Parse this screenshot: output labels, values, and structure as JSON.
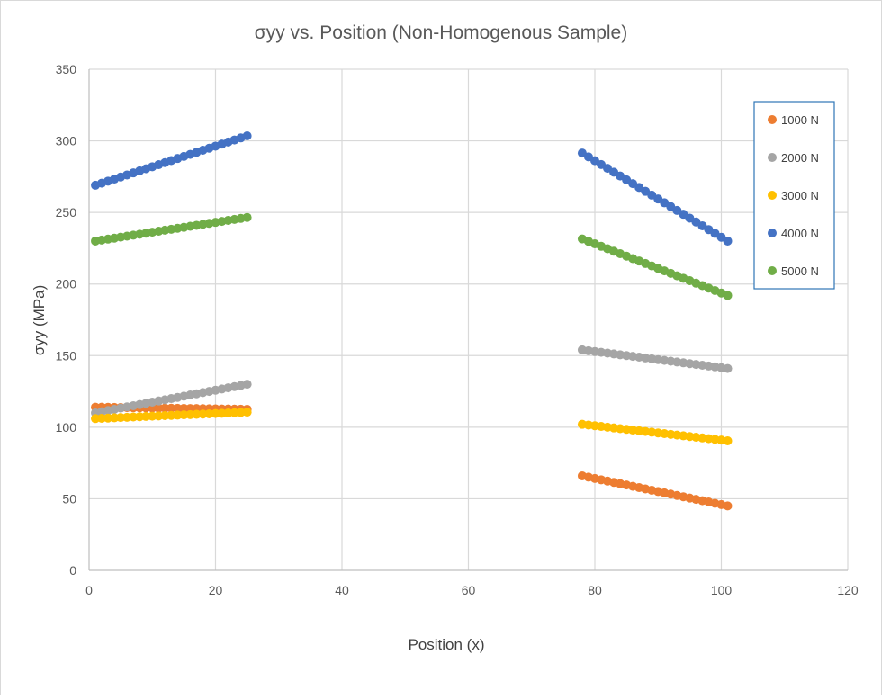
{
  "chart_data": {
    "type": "scatter",
    "title": "σyy vs. Position (Non-Homogenous Sample)",
    "xlabel": "Position (x)",
    "ylabel": "σyy (MPa)",
    "xlim": [
      0,
      120
    ],
    "ylim": [
      0,
      350
    ],
    "xticks": [
      0,
      20,
      40,
      60,
      80,
      100,
      120
    ],
    "yticks": [
      0,
      50,
      100,
      150,
      200,
      250,
      300,
      350
    ],
    "grid": true,
    "legend_position": "right",
    "marker": "circle",
    "series": [
      {
        "name": "1000 N",
        "color": "#ED7D31",
        "segments": [
          {
            "x_start": 1,
            "x_end": 25,
            "y_start": 114,
            "y_end": 112.5,
            "n_points": 25
          },
          {
            "x_start": 78,
            "x_end": 101,
            "y_start": 66,
            "y_end": 45,
            "n_points": 24
          }
        ]
      },
      {
        "name": "2000 N",
        "color": "#A5A5A5",
        "segments": [
          {
            "x_start": 1,
            "x_end": 25,
            "y_start": 110,
            "y_end": 130,
            "n_points": 25
          },
          {
            "x_start": 78,
            "x_end": 101,
            "y_start": 154,
            "y_end": 141,
            "n_points": 24
          }
        ]
      },
      {
        "name": "3000 N",
        "color": "#FFC000",
        "segments": [
          {
            "x_start": 1,
            "x_end": 25,
            "y_start": 106,
            "y_end": 110.5,
            "n_points": 25
          },
          {
            "x_start": 78,
            "x_end": 101,
            "y_start": 102,
            "y_end": 90.5,
            "n_points": 24
          }
        ]
      },
      {
        "name": "4000 N",
        "color": "#4472C4",
        "segments": [
          {
            "x_start": 1,
            "x_end": 25,
            "y_start": 269,
            "y_end": 303.5,
            "n_points": 25
          },
          {
            "x_start": 78,
            "x_end": 101,
            "y_start": 291.5,
            "y_end": 230,
            "n_points": 24
          }
        ]
      },
      {
        "name": "5000 N",
        "color": "#70AD47",
        "segments": [
          {
            "x_start": 1,
            "x_end": 25,
            "y_start": 230,
            "y_end": 246.5,
            "n_points": 25
          },
          {
            "x_start": 78,
            "x_end": 101,
            "y_start": 231.5,
            "y_end": 192,
            "n_points": 24
          }
        ]
      }
    ]
  }
}
